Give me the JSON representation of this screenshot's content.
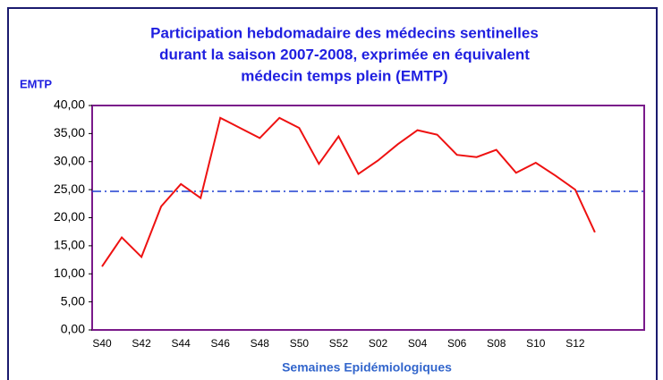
{
  "chart_data": {
    "type": "line",
    "title": [
      "Participation hebdomadaire des médecins sentinelles",
      "durant la saison 2007-2008, exprimée en équivalent",
      "médecin temps plein (EMTP)"
    ],
    "y_label": "EMTP",
    "x_label": "Semaines Epidémiologiques",
    "categories": [
      "S40",
      null,
      "S42",
      null,
      "S44",
      null,
      "S46",
      null,
      "S48",
      null,
      "S50",
      null,
      "S52",
      null,
      "S02",
      null,
      "S04",
      null,
      "S06",
      null,
      "S08",
      null,
      "S10",
      null,
      "S12",
      null,
      null,
      null
    ],
    "series": [
      {
        "color": "#ee1111",
        "values": [
          11.3,
          16.5,
          13.0,
          22.0,
          26.0,
          23.5,
          37.8,
          36.0,
          34.2,
          37.8,
          36.0,
          29.6,
          34.5,
          27.8,
          30.2,
          33.1,
          35.6,
          34.8,
          31.2,
          30.8,
          32.1,
          28.0,
          29.8,
          27.5,
          25.0,
          17.4,
          null,
          null
        ]
      }
    ],
    "reference_line": {
      "value": 24.7,
      "color": "#1f3fd0"
    },
    "ylim": [
      0,
      40
    ],
    "yticks": [
      {
        "value": 0,
        "label": "0,00"
      },
      {
        "value": 5,
        "label": "5,00"
      },
      {
        "value": 10,
        "label": "10,00"
      },
      {
        "value": 15,
        "label": "15,00"
      },
      {
        "value": 20,
        "label": "20,00"
      },
      {
        "value": 25,
        "label": "25,00"
      },
      {
        "value": 30,
        "label": "30,00"
      },
      {
        "value": 35,
        "label": "35,00"
      },
      {
        "value": 40,
        "label": "40,00"
      }
    ],
    "grid": false
  }
}
